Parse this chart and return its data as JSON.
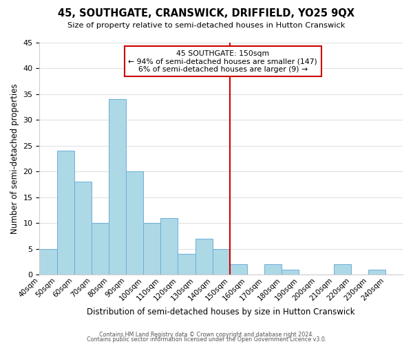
{
  "title": "45, SOUTHGATE, CRANSWICK, DRIFFIELD, YO25 9QX",
  "subtitle": "Size of property relative to semi-detached houses in Hutton Cranswick",
  "xlabel": "Distribution of semi-detached houses by size in Hutton Cranswick",
  "ylabel": "Number of semi-detached properties",
  "footer_lines": [
    "Contains HM Land Registry data © Crown copyright and database right 2024.",
    "Contains public sector information licensed under the Open Government Licence v3.0."
  ],
  "bin_labels": [
    "40sqm",
    "50sqm",
    "60sqm",
    "70sqm",
    "80sqm",
    "90sqm",
    "100sqm",
    "110sqm",
    "120sqm",
    "130sqm",
    "140sqm",
    "150sqm",
    "160sqm",
    "170sqm",
    "180sqm",
    "190sqm",
    "200sqm",
    "210sqm",
    "220sqm",
    "230sqm",
    "240sqm"
  ],
  "bin_left_edges": [
    40,
    50,
    60,
    70,
    80,
    90,
    100,
    110,
    120,
    130,
    140,
    150,
    160,
    170,
    180,
    190,
    200,
    210,
    220,
    230
  ],
  "counts": [
    5,
    24,
    18,
    10,
    34,
    20,
    10,
    11,
    4,
    7,
    5,
    2,
    0,
    2,
    1,
    0,
    0,
    2,
    0,
    1
  ],
  "bar_color": "#add8e6",
  "bar_edge_color": "#6baed6",
  "grid_color": "#e0e0e0",
  "property_line_x": 150,
  "property_label": "45 SOUTHGATE: 150sqm",
  "annotation_smaller": "← 94% of semi-detached houses are smaller (147)",
  "annotation_larger": "6% of semi-detached houses are larger (9) →",
  "annotation_box_color": "#ffffff",
  "annotation_box_edge": "#cc0000",
  "property_line_color": "#cc0000",
  "ylim": [
    0,
    45
  ],
  "yticks": [
    0,
    5,
    10,
    15,
    20,
    25,
    30,
    35,
    40,
    45
  ],
  "xlim": [
    40,
    250
  ],
  "xtick_positions": [
    40,
    50,
    60,
    70,
    80,
    90,
    100,
    110,
    120,
    130,
    140,
    150,
    160,
    170,
    180,
    190,
    200,
    210,
    220,
    230,
    240
  ]
}
